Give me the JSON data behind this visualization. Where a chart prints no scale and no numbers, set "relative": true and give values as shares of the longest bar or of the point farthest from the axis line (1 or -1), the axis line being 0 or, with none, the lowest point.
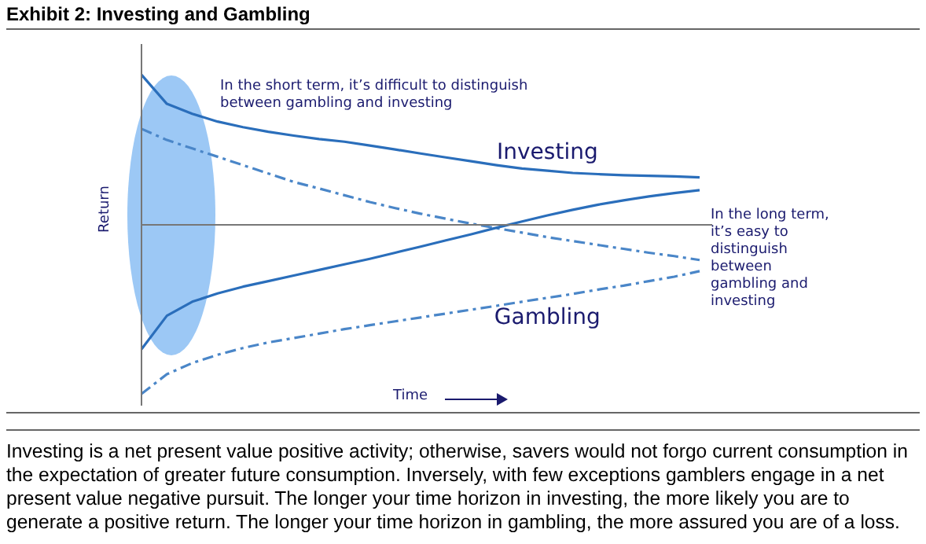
{
  "chart_data": {
    "type": "line",
    "title": "Exhibit 2: Investing and Gambling",
    "xlabel": "Time",
    "ylabel": "Return",
    "relative": true,
    "legend": false,
    "grid": false,
    "marker": "none",
    "categories": [
      null,
      null,
      null,
      null,
      null,
      null,
      null,
      null,
      null,
      null,
      null,
      null,
      null,
      null,
      null,
      null,
      null,
      null,
      null,
      null,
      null,
      null,
      null
    ],
    "series": [
      {
        "name": "Investing",
        "color": "#2a6ebb",
        "line_style": "solid",
        "values": [
          0.888,
          0.716,
          0.657,
          0.611,
          0.578,
          0.551,
          0.528,
          0.508,
          0.492,
          0.469,
          0.446,
          0.422,
          0.399,
          0.376,
          0.353,
          0.333,
          0.32,
          0.307,
          0.3,
          0.294,
          0.29,
          0.287,
          0.281
        ]
      },
      {
        "color": "#2a6ebb",
        "line_style": "solid",
        "values": [
          -0.736,
          -0.538,
          -0.455,
          -0.406,
          -0.366,
          -0.333,
          -0.3,
          -0.267,
          -0.234,
          -0.201,
          -0.165,
          -0.129,
          -0.092,
          -0.056,
          -0.017,
          0.02,
          0.056,
          0.089,
          0.119,
          0.145,
          0.168,
          0.188,
          0.205
        ]
      },
      {
        "color": "#4a86c8",
        "line_style": "dashed",
        "values": [
          0.568,
          0.502,
          0.452,
          0.403,
          0.353,
          0.304,
          0.254,
          0.215,
          0.175,
          0.135,
          0.099,
          0.066,
          0.036,
          0.007,
          -0.02,
          -0.046,
          -0.073,
          -0.096,
          -0.119,
          -0.142,
          -0.165,
          -0.185,
          -0.208
        ]
      },
      {
        "name": "Gambling",
        "color": "#4a86c8",
        "line_style": "dashed",
        "values": [
          -1,
          -0.884,
          -0.818,
          -0.769,
          -0.729,
          -0.696,
          -0.67,
          -0.644,
          -0.617,
          -0.594,
          -0.571,
          -0.548,
          -0.525,
          -0.502,
          -0.479,
          -0.455,
          -0.432,
          -0.409,
          -0.383,
          -0.36,
          -0.333,
          -0.307,
          -0.274
        ]
      }
    ],
    "annotations": [
      "In the short term, it’s difficult to distinguish between gambling and investing",
      "In the long term, it’s easy to distinguish between gambling and investing",
      "Investing is a net present value positive activity; otherwise, savers would not forgo current consumption in the expectation of greater future consumption. Inversely, with few exceptions gamblers engage in a net present value negative pursuit. The longer your time horizon in investing, the more likely you are to generate a positive return. The longer your time horizon in gambling, the more assured you are of a loss."
    ]
  }
}
